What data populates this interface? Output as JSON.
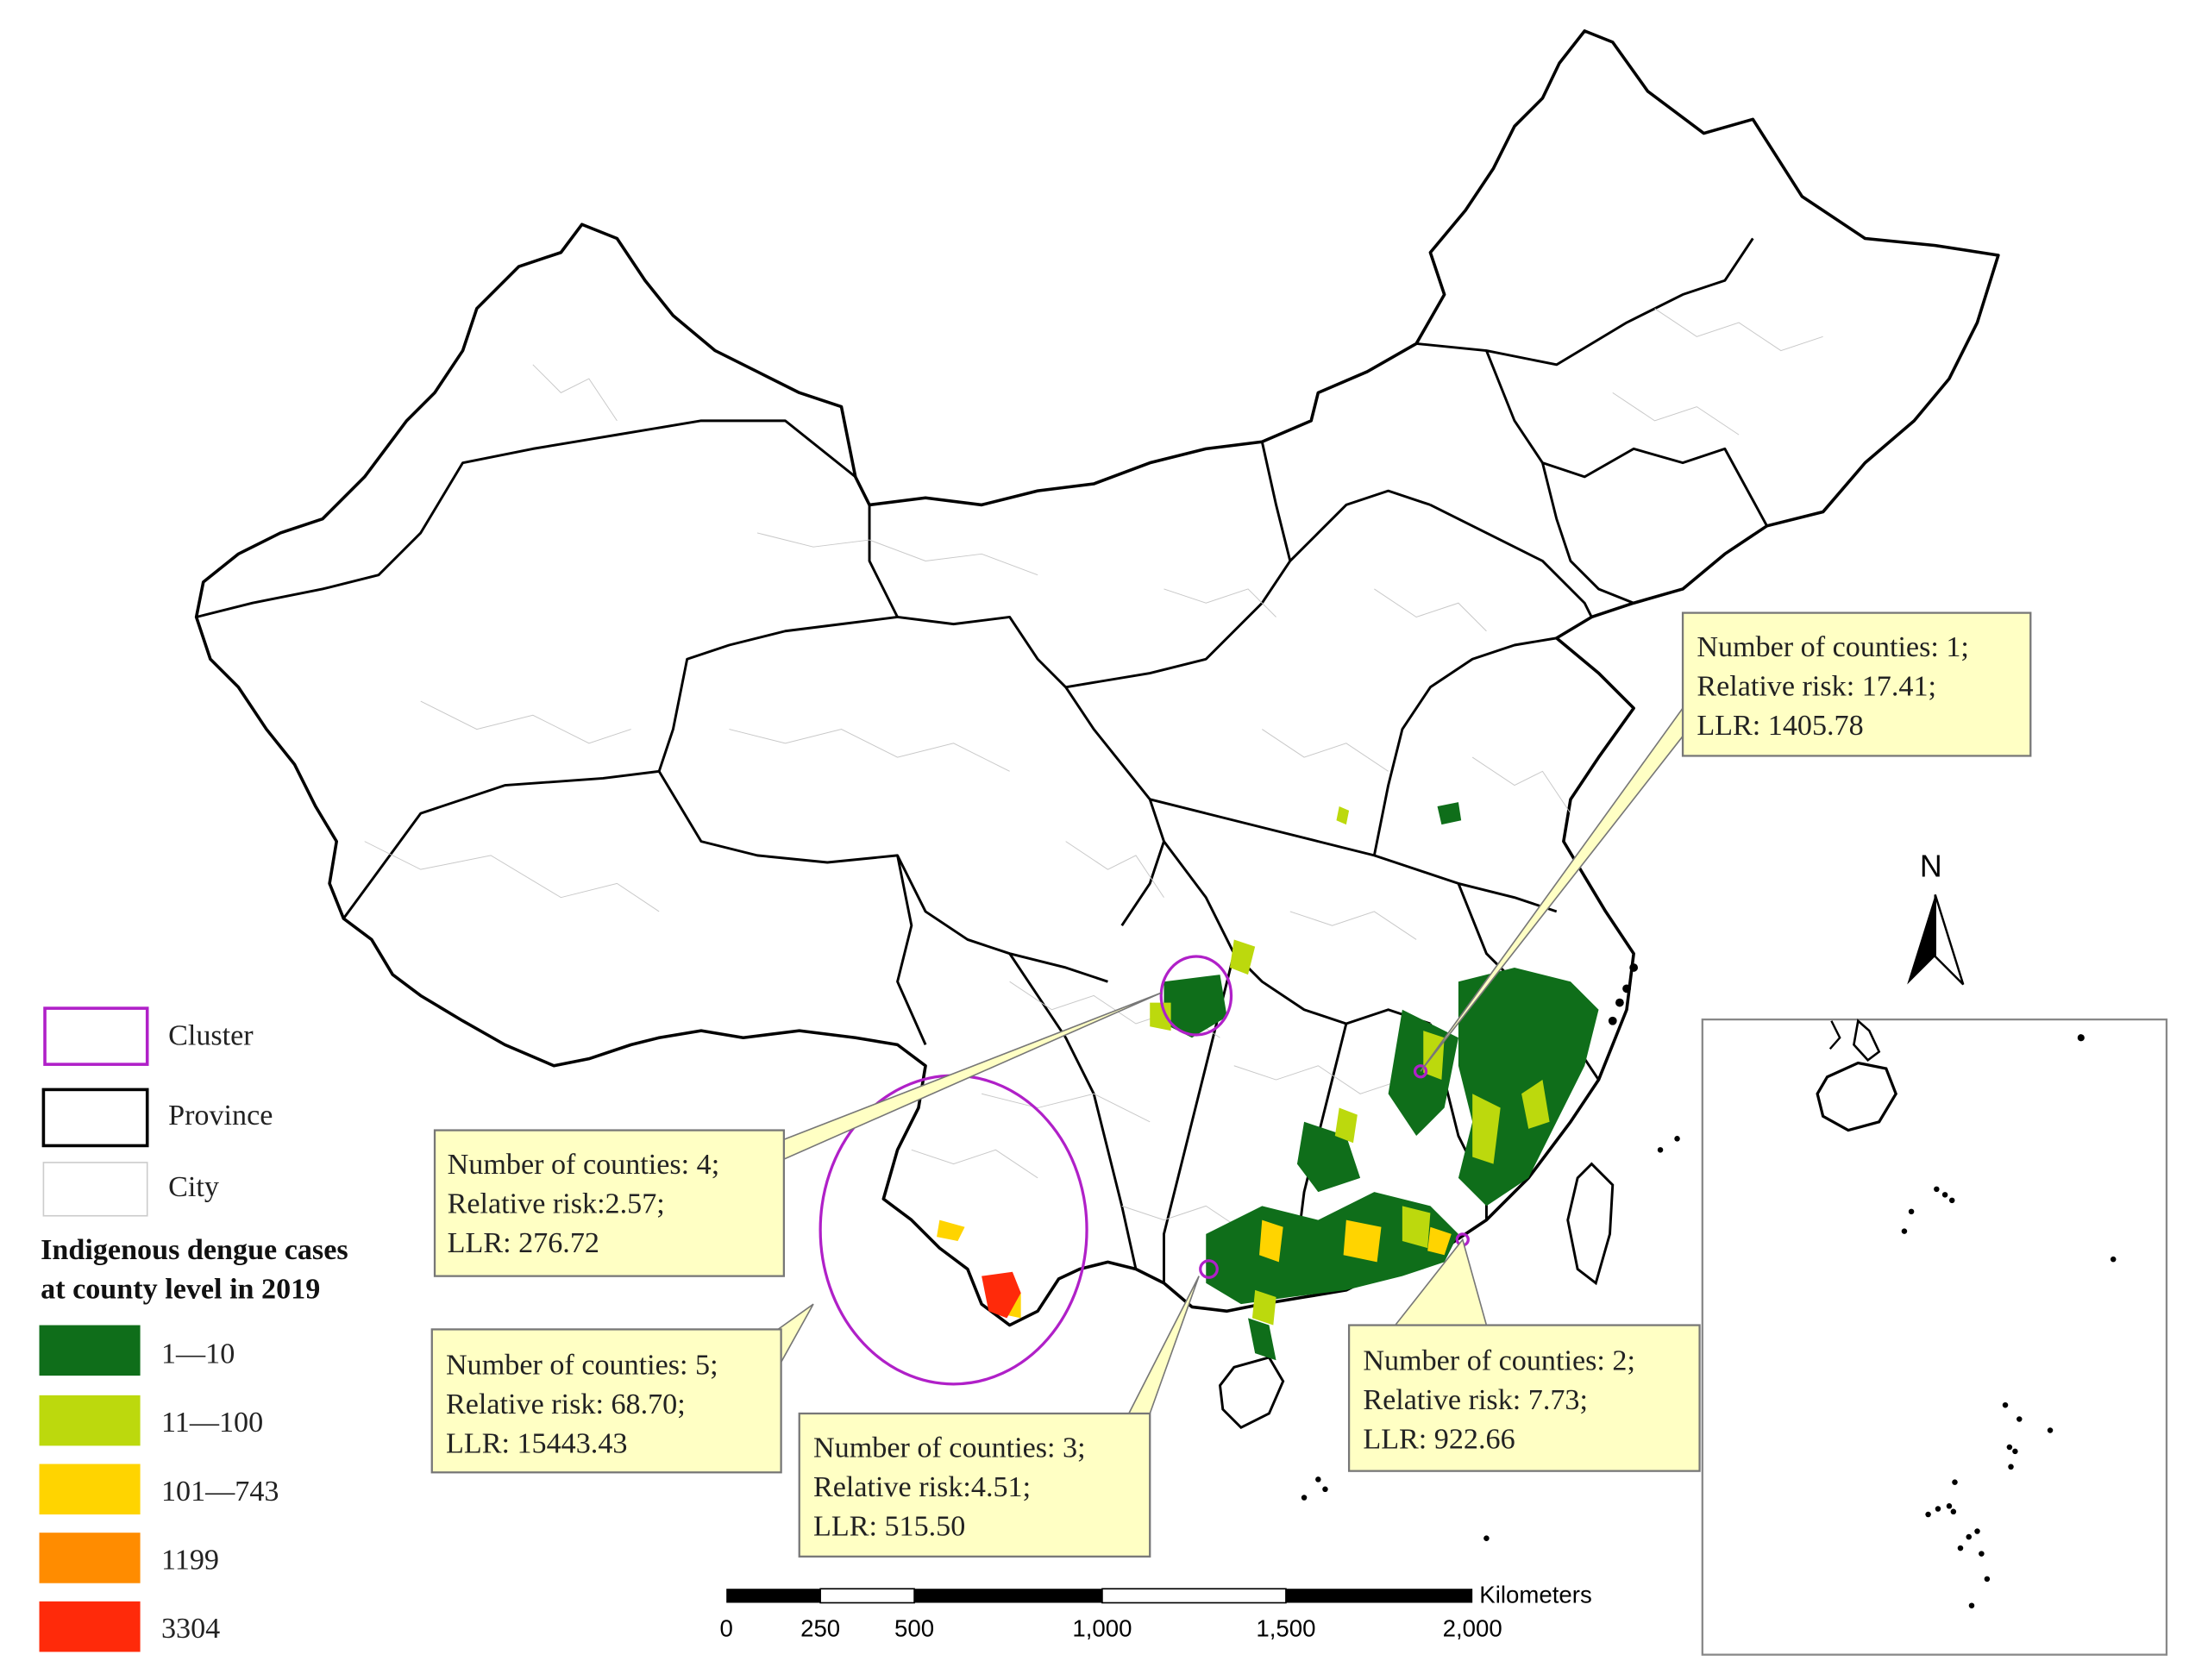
{
  "legend": {
    "symbols": [
      {
        "id": "cluster",
        "label": "Cluster",
        "stroke": "#b020c8"
      },
      {
        "id": "province",
        "label": "Province",
        "stroke": "#000000"
      },
      {
        "id": "city",
        "label": "City",
        "stroke": "#cccccc"
      }
    ],
    "title_line1": "Indigenous dengue cases",
    "title_line2": "at county level in 2019",
    "classes": [
      {
        "label": "1—10",
        "color": "#0f6e1a"
      },
      {
        "label": "11—100",
        "color": "#bcd90d"
      },
      {
        "label": "101—743",
        "color": "#ffd400"
      },
      {
        "label": "1199",
        "color": "#ff8c00"
      },
      {
        "label": "3304",
        "color": "#ff2a0a"
      }
    ]
  },
  "callouts": [
    {
      "id": "c1",
      "lines": [
        "Number of counties: 1;",
        "Relative risk: 17.41;",
        "LLR: 1405.78"
      ]
    },
    {
      "id": "c2",
      "lines": [
        "Number of counties: 4;",
        "Relative risk:2.57;",
        "LLR: 276.72"
      ]
    },
    {
      "id": "c3",
      "lines": [
        "Number of counties: 5;",
        "Relative risk: 68.70;",
        "LLR: 15443.43"
      ]
    },
    {
      "id": "c4",
      "lines": [
        "Number of counties: 3;",
        "Relative risk:4.51;",
        "LLR: 515.50"
      ]
    },
    {
      "id": "c5",
      "lines": [
        "Number of counties: 2;",
        "Relative risk: 7.73;",
        "LLR: 922.66"
      ]
    }
  ],
  "callout_fill": "#ffffc4",
  "north_label": "N",
  "scale_bar": {
    "unit": "Kilometers",
    "ticks": [
      "0",
      "250",
      "500",
      "1,000",
      "1,500",
      "2,000"
    ]
  }
}
